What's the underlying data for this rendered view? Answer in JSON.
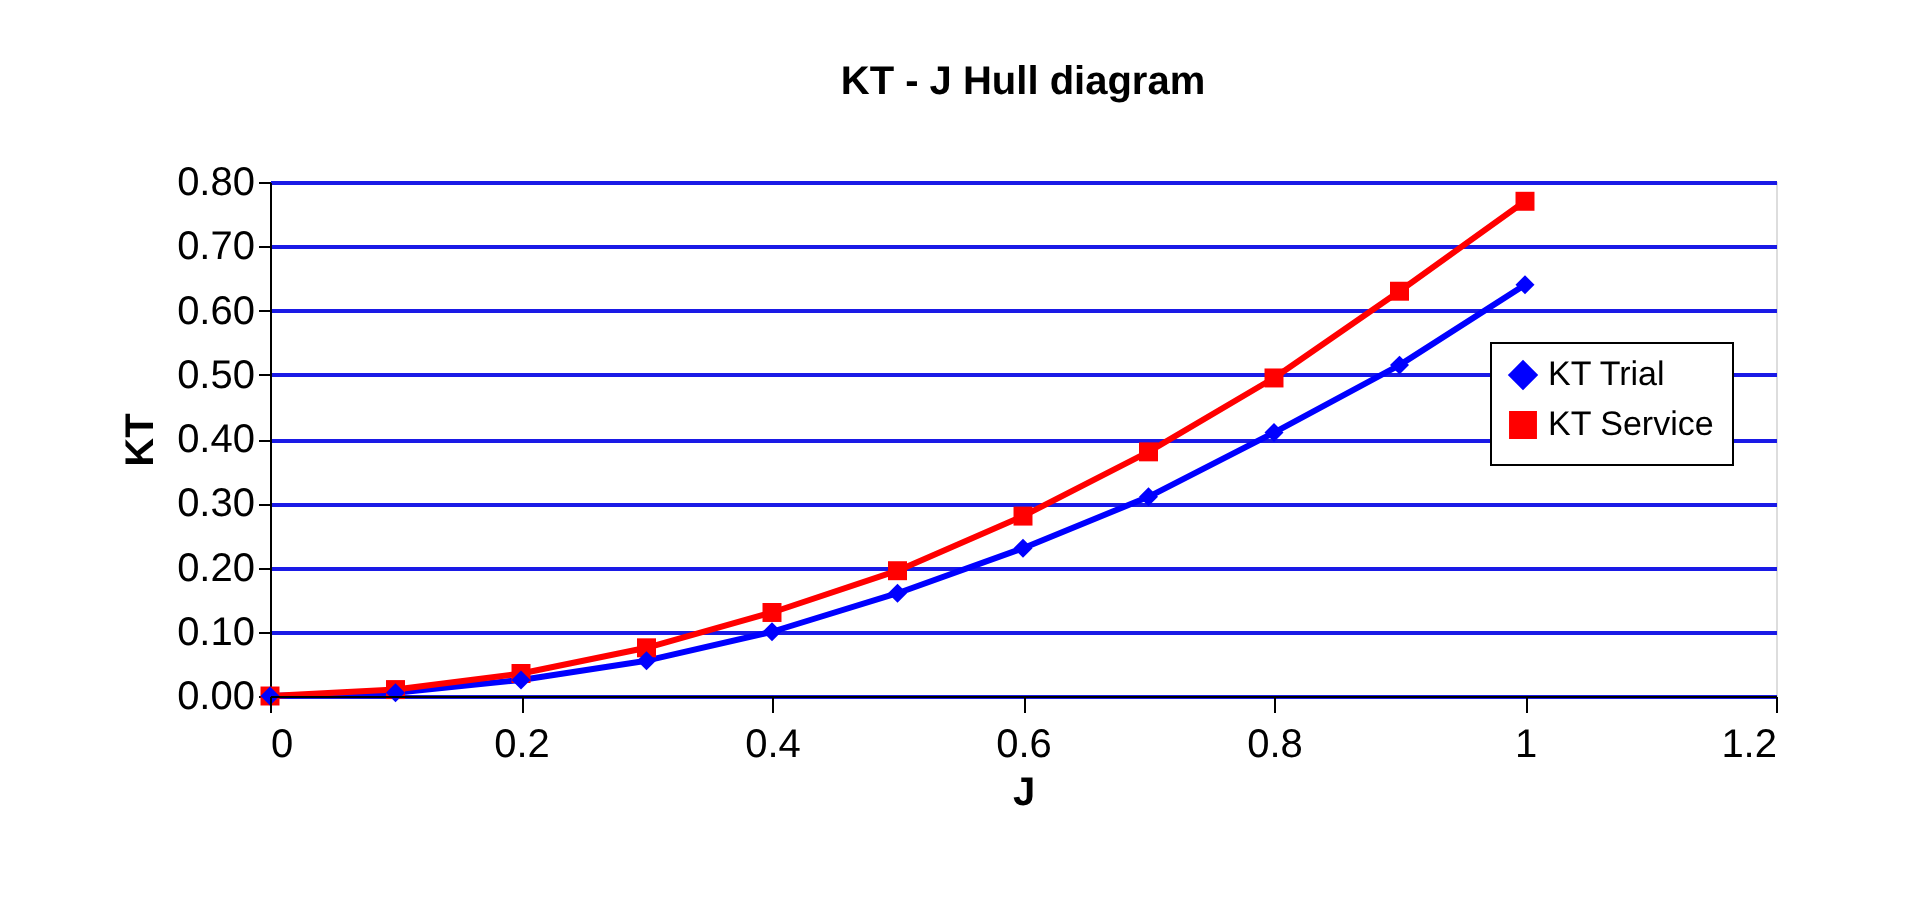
{
  "chart_data": {
    "type": "line",
    "title": "KT - J Hull diagram",
    "xlabel": "J",
    "ylabel": "KT",
    "x": [
      0,
      0.1,
      0.2,
      0.3,
      0.4,
      0.5,
      0.6,
      0.7,
      0.8,
      0.9,
      1.0
    ],
    "series": [
      {
        "name": "KT Trial",
        "color": "#0000ff",
        "marker": "diamond",
        "values": [
          0,
          0.005,
          0.025,
          0.055,
          0.1,
          0.16,
          0.23,
          0.31,
          0.41,
          0.515,
          0.64
        ]
      },
      {
        "name": "KT Service",
        "color": "#ff0000",
        "marker": "square",
        "values": [
          0,
          0.01,
          0.035,
          0.075,
          0.13,
          0.195,
          0.28,
          0.38,
          0.495,
          0.63,
          0.77
        ]
      }
    ],
    "xlim": [
      0,
      1.2
    ],
    "xticks": [
      0,
      0.2,
      0.4,
      0.6,
      0.8,
      1,
      1.2
    ],
    "ylim": [
      0,
      0.8
    ],
    "yticks": [
      {
        "value": 0,
        "label": "0.00"
      },
      {
        "value": 0.1,
        "label": "0.10"
      },
      {
        "value": 0.2,
        "label": "0.20"
      },
      {
        "value": 0.3,
        "label": "0.30"
      },
      {
        "value": 0.4,
        "label": "0.40"
      },
      {
        "value": 0.5,
        "label": "0.50"
      },
      {
        "value": 0.6,
        "label": "0.60"
      },
      {
        "value": 0.7,
        "label": "0.70"
      },
      {
        "value": 0.8,
        "label": "0.80"
      }
    ],
    "grid": "y",
    "legend": "right",
    "line_style": "solid"
  }
}
